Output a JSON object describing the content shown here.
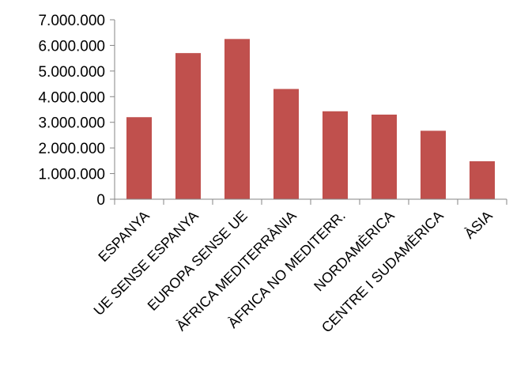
{
  "chart_data": {
    "type": "bar",
    "categories": [
      "ESPANYA",
      "UE SENSE ESPANYA",
      "EUROPA SENSE UE",
      "ÀFRICA MEDITERRÀNIA",
      "ÀFRICA NO MEDITERR.",
      "NORDAMÈRICA",
      "CENTRE I SUDAMÈRICA",
      "ÀSIA"
    ],
    "values": [
      3200000,
      5700000,
      6250000,
      4300000,
      3430000,
      3300000,
      2670000,
      1480000
    ],
    "ylim": [
      0,
      7000000
    ],
    "yticks": [
      0,
      1000000,
      2000000,
      3000000,
      4000000,
      5000000,
      6000000,
      7000000
    ],
    "ytick_labels": [
      "0",
      "1.000.000",
      "2.000.000",
      "3.000.000",
      "4.000.000",
      "5.000.000",
      "6.000.000",
      "7.000.000"
    ],
    "bar_color": "#C0504D",
    "grid": false,
    "legend": "none"
  }
}
